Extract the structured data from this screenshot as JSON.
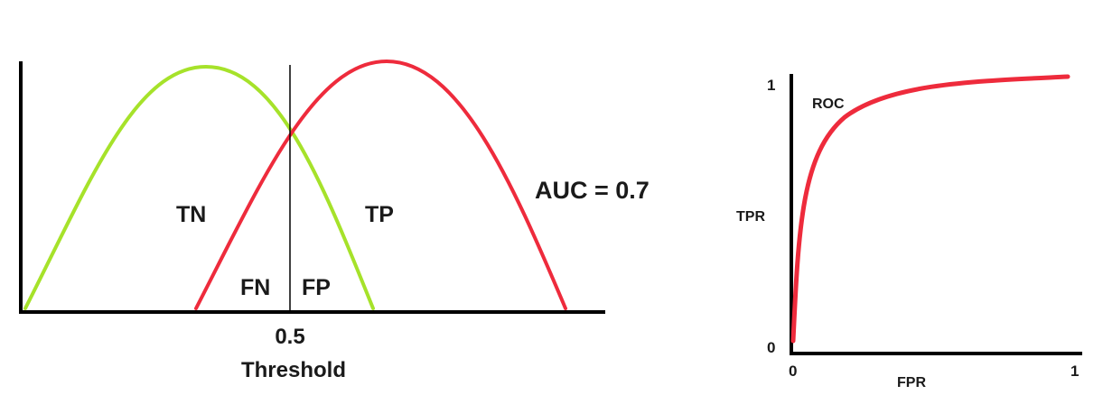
{
  "colors": {
    "negative_curve": "#a6e22a",
    "positive_curve": "#ee2b3c",
    "axis": "#000000",
    "text": "#1a1a1a",
    "background": "#ffffff"
  },
  "distributions": {
    "threshold_value": "0.5",
    "axis_label": "Threshold",
    "labels": {
      "tn": "TN",
      "tp": "TP",
      "fn": "FN",
      "fp": "FP"
    },
    "auc_text": "AUC = 0.7"
  },
  "roc_chart": {
    "curve_label": "ROC",
    "y_axis_label": "TPR",
    "x_axis_label": "FPR",
    "y_tick_top": "1",
    "y_tick_bottom": "0",
    "x_tick_left": "0",
    "x_tick_right": "1"
  }
}
